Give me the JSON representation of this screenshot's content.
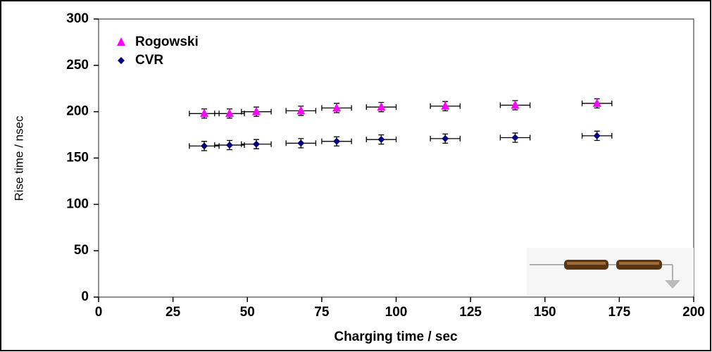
{
  "chart_data": {
    "type": "scatter",
    "x_label": "Charging time / sec",
    "y_label": "Rise time / nsec",
    "x": [
      35.5,
      44,
      53,
      68,
      80,
      95,
      116.5,
      140,
      167.5
    ],
    "series": [
      {
        "name": "Rogowski",
        "color": "#ff00ff",
        "marker": "triangle",
        "values": [
          198,
          198,
          200,
          201,
          204,
          205,
          206,
          207,
          209
        ],
        "xerr": 5,
        "yerr": 5
      },
      {
        "name": "CVR",
        "color": "#000080",
        "marker": "diamond",
        "values": [
          163,
          164,
          165,
          166,
          168,
          170,
          171,
          172,
          174
        ],
        "xerr": 5,
        "yerr": 5
      }
    ],
    "xlim": [
      0,
      200
    ],
    "xticks": [
      0,
      25,
      50,
      75,
      100,
      125,
      150,
      175,
      200
    ],
    "ylim": [
      0,
      300
    ],
    "yticks": [
      0,
      50,
      100,
      150,
      200,
      250,
      300
    ],
    "legend": "upper left"
  }
}
